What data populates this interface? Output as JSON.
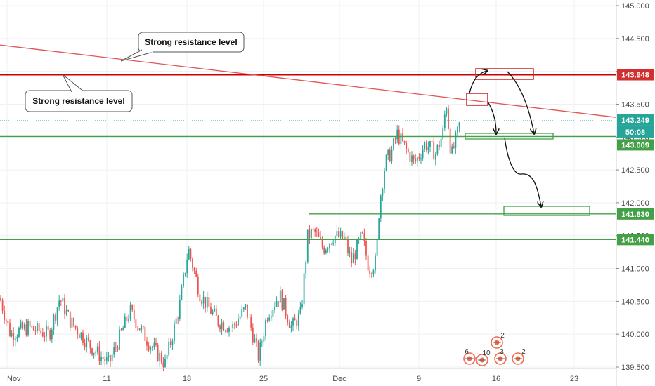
{
  "chart_data": {
    "type": "candlestick",
    "title": "",
    "xlabel": "",
    "ylabel": "",
    "ylim": [
      139.5,
      145.0
    ],
    "grid": true,
    "x_ticks": [
      "Nov",
      "11",
      "18",
      "25",
      "Dec",
      "9",
      "16",
      "23"
    ],
    "y_ticks": [
      "145.000",
      "144.500",
      "144.000",
      "143.500",
      "143.000",
      "142.500",
      "142.000",
      "141.500",
      "141.000",
      "140.500",
      "140.000",
      "139.500"
    ],
    "price_tags": [
      {
        "label": "143.948",
        "value": 143.948,
        "color": "#d32f2f"
      },
      {
        "label": "143.249",
        "value": 143.249,
        "color": "#26a69a"
      },
      {
        "label": "50:08",
        "value": 143.15,
        "color": "#26a69a"
      },
      {
        "label": "143.009",
        "value": 143.009,
        "color": "#43a047"
      },
      {
        "label": "141.830",
        "value": 141.83,
        "color": "#43a047"
      },
      {
        "label": "141.440",
        "value": 141.44,
        "color": "#43a047"
      }
    ],
    "horizontal_levels": [
      {
        "value": 143.948,
        "color": "#cc0000"
      },
      {
        "value": 143.009,
        "color": "#43a047"
      },
      {
        "value": 141.44,
        "color": "#43a047"
      }
    ],
    "trendline": {
      "from": [
        "start",
        144.4
      ],
      "to": [
        "end",
        143.3
      ],
      "color": "#e05555"
    },
    "callouts": [
      {
        "text": "Strong resistance level"
      },
      {
        "text": "Strong resistance level"
      }
    ],
    "event_badges": [
      "6",
      "10",
      "3",
      "2",
      "2"
    ],
    "colors": {
      "up": "#26a69a",
      "down": "#ef5350",
      "support": "#43a047",
      "resistance": "#cc0000"
    }
  }
}
